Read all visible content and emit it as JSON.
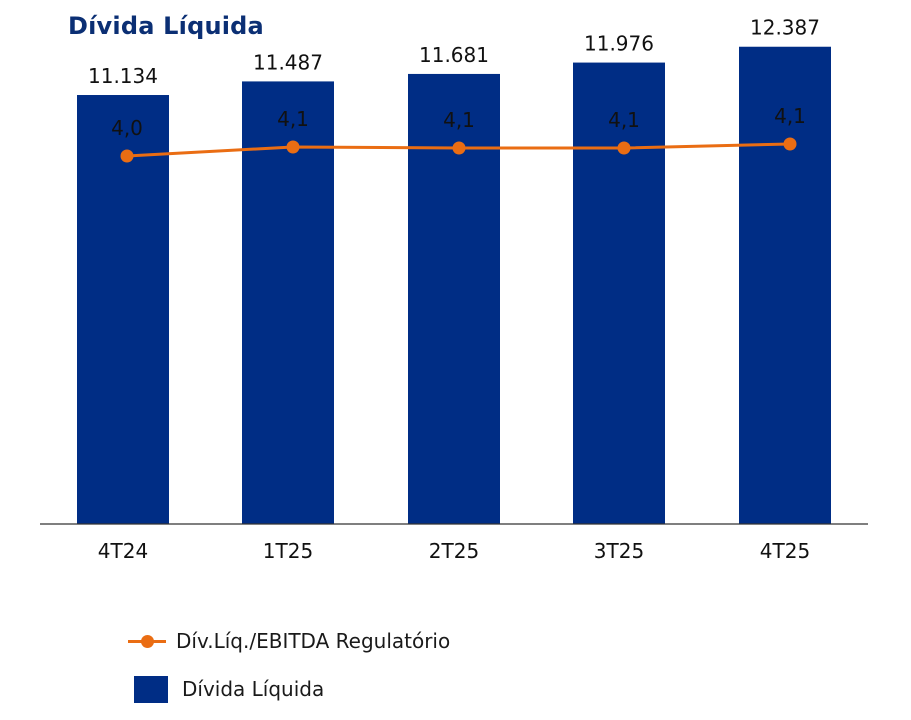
{
  "chart_data": {
    "type": "bar",
    "title": "Dívida Líquida",
    "categories": [
      "4T24",
      "1T25",
      "2T25",
      "3T25",
      "4T25"
    ],
    "series": [
      {
        "name": "Dívida Líquida",
        "type": "bar",
        "values": [
          11134,
          11487,
          11681,
          11976,
          12387
        ],
        "labels": [
          "11.134",
          "11.487",
          "11.681",
          "11.976",
          "12.387"
        ],
        "color": "#002d85"
      },
      {
        "name": "Dív.Líq./EBITDA Regulatório",
        "type": "line",
        "values": [
          4.0,
          4.1,
          4.1,
          4.1,
          4.1
        ],
        "labels": [
          "4,0",
          "4,1",
          "4,1",
          "4,1",
          "4,1"
        ],
        "color": "#ea6d13"
      }
    ],
    "ylim": [
      0,
      13600
    ],
    "line_ylim": [
      0,
      12.35
    ],
    "xlabel": "",
    "ylabel": ""
  },
  "legend": {
    "line_label": "Dív.Líq./EBITDA Regulatório",
    "bar_label": "Dívida Líquida"
  }
}
